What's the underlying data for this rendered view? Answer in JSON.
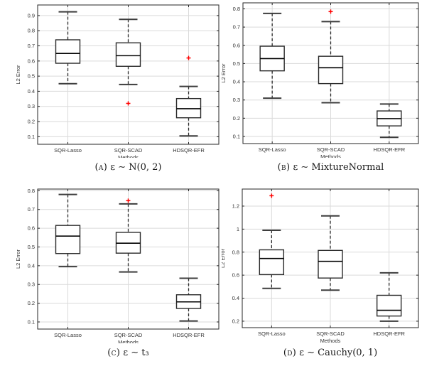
{
  "figure": {
    "background": "#ffffff",
    "xlabel": "Methods",
    "ylabel": "L2 Error",
    "categories": [
      "SQR-Lasso",
      "SQR-SCAD",
      "HDSQR-EFR"
    ],
    "colors": {
      "grid": "#dadada",
      "axis": "#262626",
      "text": "#333333",
      "box_edge": "#2a2a2a",
      "median": "#000000",
      "whisker": "#2a2a2a",
      "cap": "#3d3d3d",
      "outlier": "#ff0000"
    }
  },
  "chart_data": [
    {
      "type": "boxplot",
      "panel": "A",
      "caption_label": "(a)",
      "caption_text": "ε ∼ N(0, 2)",
      "xlabel": "Methods",
      "ylabel": "L2 Error",
      "categories": [
        "SQR-Lasso",
        "SQR-SCAD",
        "HDSQR-EFR"
      ],
      "ylim": [
        0.05,
        0.97
      ],
      "yticks": [
        0.1,
        0.2,
        0.3,
        0.4,
        0.5,
        0.6,
        0.7,
        0.8,
        0.9
      ],
      "ytick_labels": [
        "0.1",
        "0.2",
        "0.3",
        "0.4",
        "0.5",
        "0.6",
        "0.7",
        "0.8",
        "0.9"
      ],
      "series": [
        {
          "name": "SQR-Lasso",
          "whisker_low": 0.45,
          "q1": 0.585,
          "median": 0.65,
          "q3": 0.74,
          "whisker_high": 0.925,
          "outliers": []
        },
        {
          "name": "SQR-SCAD",
          "whisker_low": 0.445,
          "q1": 0.565,
          "median": 0.635,
          "q3": 0.72,
          "whisker_high": 0.875,
          "outliers": [
            0.32
          ]
        },
        {
          "name": "HDSQR-EFR",
          "whisker_low": 0.105,
          "q1": 0.225,
          "median": 0.285,
          "q3": 0.352,
          "whisker_high": 0.432,
          "outliers": [
            0.62
          ]
        }
      ]
    },
    {
      "type": "boxplot",
      "panel": "B",
      "caption_label": "(b)",
      "caption_text": "ε ∼ MixtureNormal",
      "xlabel": "Methods",
      "ylabel": "L2 Error",
      "categories": [
        "SQR-Lasso",
        "SQR-SCAD",
        "HDSQR-EFR"
      ],
      "ylim": [
        0.061,
        0.833
      ],
      "yticks": [
        0.1,
        0.2,
        0.3,
        0.4,
        0.5,
        0.6,
        0.7,
        0.8
      ],
      "ytick_labels": [
        "0.1",
        "0.2",
        "0.3",
        "0.4",
        "0.5",
        "0.6",
        "0.7",
        "0.8"
      ],
      "series": [
        {
          "name": "SQR-Lasso",
          "whisker_low": 0.31,
          "q1": 0.46,
          "median": 0.527,
          "q3": 0.595,
          "whisker_high": 0.775,
          "outliers": []
        },
        {
          "name": "SQR-SCAD",
          "whisker_low": 0.285,
          "q1": 0.39,
          "median": 0.477,
          "q3": 0.54,
          "whisker_high": 0.73,
          "outliers": [
            0.785
          ]
        },
        {
          "name": "HDSQR-EFR",
          "whisker_low": 0.095,
          "q1": 0.158,
          "median": 0.198,
          "q3": 0.24,
          "whisker_high": 0.278,
          "outliers": []
        }
      ]
    },
    {
      "type": "boxplot",
      "panel": "C",
      "caption_label": "(c)",
      "caption_text": "ε ∼ t₃",
      "xlabel": "Methods",
      "ylabel": "L2 Error",
      "categories": [
        "SQR-Lasso",
        "SQR-SCAD",
        "HDSQR-EFR"
      ],
      "ylim": [
        0.062,
        0.809
      ],
      "yticks": [
        0.1,
        0.2,
        0.3,
        0.4,
        0.5,
        0.6,
        0.7,
        0.8
      ],
      "ytick_labels": [
        "0.1",
        "0.2",
        "0.3",
        "0.4",
        "0.5",
        "0.6",
        "0.7",
        "0.8"
      ],
      "series": [
        {
          "name": "SQR-Lasso",
          "whisker_low": 0.395,
          "q1": 0.465,
          "median": 0.558,
          "q3": 0.615,
          "whisker_high": 0.78,
          "outliers": []
        },
        {
          "name": "SQR-SCAD",
          "whisker_low": 0.367,
          "q1": 0.467,
          "median": 0.52,
          "q3": 0.578,
          "whisker_high": 0.73,
          "outliers": [
            0.747
          ]
        },
        {
          "name": "HDSQR-EFR",
          "whisker_low": 0.105,
          "q1": 0.172,
          "median": 0.207,
          "q3": 0.245,
          "whisker_high": 0.333,
          "outliers": []
        }
      ]
    },
    {
      "type": "boxplot",
      "panel": "D",
      "caption_label": "(d)",
      "caption_text": "ε ∼ Cauchy(0, 1)",
      "xlabel": "Methods",
      "ylabel": "L2 Error",
      "categories": [
        "SQR-Lasso",
        "SQR-SCAD",
        "HDSQR-EFR"
      ],
      "ylim": [
        0.144,
        1.348
      ],
      "yticks": [
        0.2,
        0.4,
        0.6,
        0.8,
        1.0,
        1.2
      ],
      "ytick_labels": [
        "0.2",
        "0.4",
        "0.6",
        "0.8",
        "1",
        "1.2"
      ],
      "series": [
        {
          "name": "SQR-Lasso",
          "whisker_low": 0.485,
          "q1": 0.605,
          "median": 0.745,
          "q3": 0.82,
          "whisker_high": 0.99,
          "outliers": [
            1.29
          ]
        },
        {
          "name": "SQR-SCAD",
          "whisker_low": 0.47,
          "q1": 0.575,
          "median": 0.72,
          "q3": 0.815,
          "whisker_high": 1.115,
          "outliers": []
        },
        {
          "name": "HDSQR-EFR",
          "whisker_low": 0.2,
          "q1": 0.245,
          "median": 0.295,
          "q3": 0.425,
          "whisker_high": 0.62,
          "outliers": []
        }
      ]
    }
  ]
}
